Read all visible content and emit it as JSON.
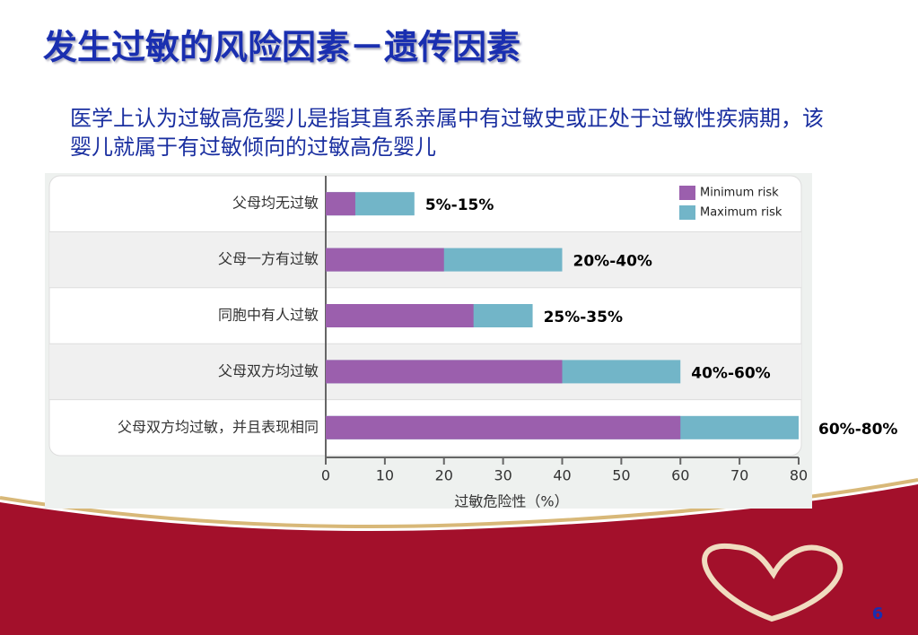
{
  "title": "发生过敏的风险因素－遗传因素",
  "text": "医学上认为过敏高危婴儿是指其直系亲属中有过敏史或正处于过敏性疾病期，该婴儿就属于有过敏倾向的过敏高危婴儿",
  "page_number": "6",
  "chart_data": {
    "type": "hbar",
    "categories": [
      "父母均无过敏",
      "父母一方有过敏",
      "同胞中有人过敏",
      "父母双方均过敏",
      "父母双方均过敏，并且表现相同"
    ],
    "series": [
      {
        "name": "Minimum risk",
        "color": "#9b5fad",
        "values": [
          5,
          20,
          25,
          40,
          60
        ]
      },
      {
        "name": "Maximum risk",
        "color": "#72b5c8",
        "values": [
          15,
          40,
          35,
          60,
          80
        ]
      }
    ],
    "annotations": [
      "5%-15%",
      "20%-40%",
      "25%-35%",
      "40%-60%",
      "60%-80%"
    ],
    "xlim": [
      0,
      80
    ],
    "xticks": [
      0,
      10,
      20,
      30,
      40,
      50,
      60,
      70,
      80
    ],
    "xlabel": "过敏危险性（%）"
  }
}
